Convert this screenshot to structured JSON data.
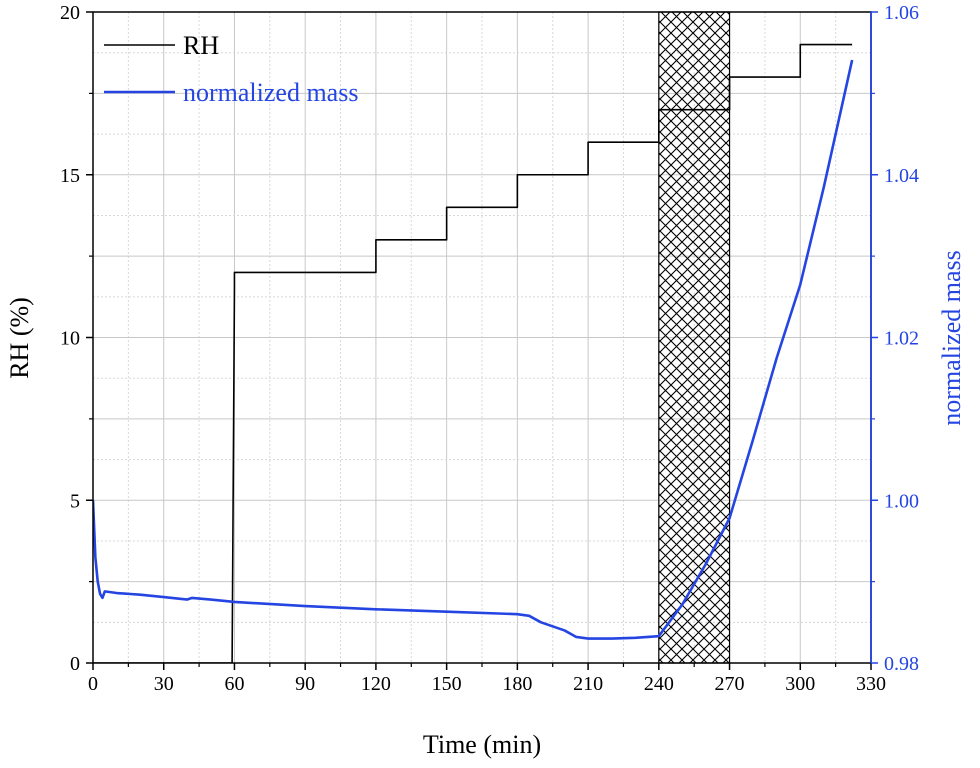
{
  "chart_data": {
    "type": "line",
    "title": "",
    "xlabel": "Time (min)",
    "ylabel": "RH (%)",
    "y2label": "normalized mass",
    "xlim": [
      0,
      330
    ],
    "ylim": [
      0,
      20
    ],
    "y2lim": [
      0.98,
      1.06
    ],
    "xticks": [
      0,
      30,
      60,
      90,
      120,
      150,
      180,
      210,
      240,
      270,
      300,
      330
    ],
    "yticks": [
      0,
      5,
      10,
      15,
      20
    ],
    "y2ticks": [
      0.98,
      1.0,
      1.02,
      1.04,
      1.06
    ],
    "y2tick_labels": [
      "0.98",
      "1.00",
      "1.02",
      "1.04",
      "1.06"
    ],
    "grid": true,
    "legend_position": "top-left",
    "shaded_region": {
      "x": [
        240,
        270
      ],
      "pattern": "crosshatch"
    },
    "series": [
      {
        "name": "RH",
        "axis": "left",
        "color": "#000000",
        "x": [
          0,
          59,
          60,
          60,
          120,
          120,
          150,
          150,
          180,
          180,
          210,
          210,
          240,
          240,
          270,
          270,
          300,
          300,
          322
        ],
        "y": [
          0,
          0,
          11.5,
          12,
          12,
          13,
          13,
          14,
          14,
          15,
          15,
          16,
          16,
          17,
          17,
          18,
          18,
          19,
          19
        ]
      },
      {
        "name": "normalized mass",
        "axis": "right",
        "color": "#2545e3",
        "x": [
          0,
          1,
          2,
          3,
          4,
          5,
          10,
          20,
          30,
          40,
          42,
          50,
          60,
          90,
          120,
          150,
          180,
          185,
          190,
          200,
          205,
          210,
          220,
          230,
          240,
          250,
          260,
          270,
          280,
          290,
          300,
          310,
          320,
          322
        ],
        "y": [
          1.0,
          0.993,
          0.99,
          0.9885,
          0.988,
          0.9888,
          0.9886,
          0.9884,
          0.9881,
          0.9878,
          0.988,
          0.9878,
          0.9875,
          0.987,
          0.9866,
          0.9863,
          0.986,
          0.9858,
          0.985,
          0.984,
          0.9832,
          0.983,
          0.983,
          0.9831,
          0.9833,
          0.9872,
          0.9922,
          0.9978,
          1.0075,
          1.0175,
          1.0265,
          1.0385,
          1.0515,
          1.0541
        ]
      }
    ]
  }
}
